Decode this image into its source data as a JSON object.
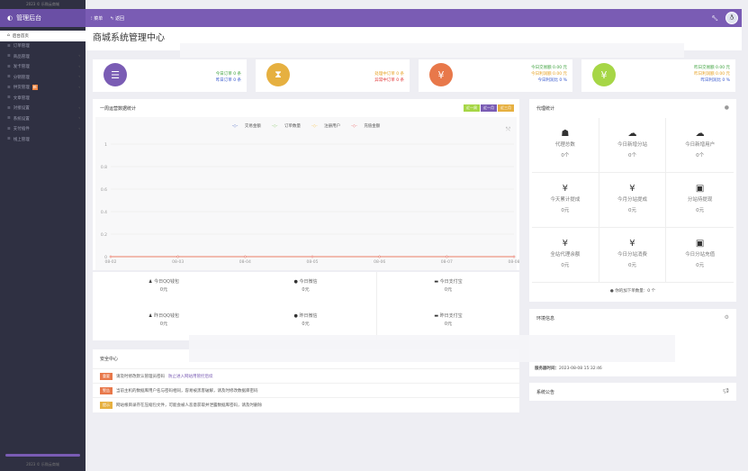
{
  "top_strip": "2023 © 乐购云商城",
  "header": {
    "brand": "管理后台",
    "nav": [
      {
        "icon": "menu-icon",
        "label": "菜单"
      },
      {
        "icon": "back-icon",
        "label": "返回"
      }
    ],
    "tool_icon": "wrench-icon",
    "avatar": "qq-avatar"
  },
  "sidebar": {
    "items": [
      {
        "label": "后台首页",
        "active": true
      },
      {
        "label": "订单管理"
      },
      {
        "label": "商品管理",
        "arrow": true
      },
      {
        "label": "发卡管理",
        "arrow": true
      },
      {
        "label": "分销管理",
        "arrow": true
      },
      {
        "label": "供货管理",
        "badge": "新",
        "arrow": true
      },
      {
        "label": "文章管理"
      },
      {
        "label": "对接设置",
        "arrow": true
      },
      {
        "label": "系统设置",
        "arrow": true
      },
      {
        "label": "支付插件",
        "arrow": true
      },
      {
        "label": "线上管理"
      }
    ],
    "footer": "2023 © 乐购云商城"
  },
  "page_title": "商城系统管理中心",
  "stats": [
    {
      "color": "#7a5cb4",
      "icon": "list-icon",
      "lines": [
        {
          "t": "今日订单 0 条",
          "c": "#3aa03a"
        },
        {
          "t": "昨日订单 0 条",
          "c": "#3355cc"
        }
      ]
    },
    {
      "color": "#e6b040",
      "icon": "hourglass-icon",
      "lines": [
        {
          "t": "处理中订单 0 条",
          "c": "#e6a020"
        },
        {
          "t": "异常中订单 0 条",
          "c": "#e03030"
        }
      ]
    },
    {
      "color": "#e8784a",
      "icon": "yen-icon",
      "lines": [
        {
          "t": "今日交易额 0.00 元",
          "c": "#3aa03a"
        },
        {
          "t": "今日利润额 0.00 元",
          "c": "#e6a020"
        },
        {
          "t": "今日利润比 0 %",
          "c": "#3355cc"
        }
      ]
    },
    {
      "color": "#a6d646",
      "icon": "yen-icon",
      "lines": [
        {
          "t": "昨日交易额 0.00 元",
          "c": "#3aa03a"
        },
        {
          "t": "昨日利润额 0.00 元",
          "c": "#e6a020"
        },
        {
          "t": "昨日利润比 0 %",
          "c": "#3355cc"
        }
      ]
    }
  ],
  "chart_panel": {
    "title": "一周运营数据统计",
    "buttons": [
      {
        "label": "近一周",
        "color": "#a6d646"
      },
      {
        "label": "近一月",
        "color": "#7a5cb4"
      },
      {
        "label": "近三月",
        "color": "#e6b040"
      }
    ]
  },
  "chart_data": {
    "type": "line",
    "x": [
      "08-02",
      "08-03",
      "08-04",
      "08-05",
      "08-06",
      "08-07",
      "08-08"
    ],
    "ylim": [
      0,
      1
    ],
    "yticks": [
      "0",
      "0.2",
      "0.4",
      "0.6",
      "0.8",
      "1"
    ],
    "grid": true,
    "legend_placement": "top",
    "series": [
      {
        "name": "交易金额",
        "color": "#5470c6",
        "values": [
          0,
          0,
          0,
          0,
          0,
          0,
          0
        ]
      },
      {
        "name": "订单数量",
        "color": "#91cc75",
        "values": [
          0,
          0,
          0,
          0,
          0,
          0,
          0
        ]
      },
      {
        "name": "注册用户",
        "color": "#fac858",
        "values": [
          0,
          0,
          0,
          0,
          0,
          0,
          0
        ]
      },
      {
        "name": "充值金额",
        "color": "#ee6666",
        "values": [
          0,
          0,
          0,
          0,
          0,
          0,
          0
        ]
      }
    ]
  },
  "payments": [
    {
      "icon": "qq-icon",
      "label": "今日QQ钱包",
      "value": "0元"
    },
    {
      "icon": "wechat-icon",
      "label": "今日微信",
      "value": "0元"
    },
    {
      "icon": "card-icon",
      "label": "今日支付宝",
      "value": "0元"
    },
    {
      "icon": "qq-icon",
      "label": "昨日QQ钱包",
      "value": "0元"
    },
    {
      "icon": "wechat-icon",
      "label": "昨日微信",
      "value": "0元"
    },
    {
      "icon": "card-icon",
      "label": "昨日支付宝",
      "value": "0元"
    }
  ],
  "security": {
    "title": "安全中心",
    "rows": [
      {
        "tag": "重要",
        "color": "#e8784a",
        "text": "请及时修改默认管理员密码",
        "link": "防止进入网站用管控后续"
      },
      {
        "tag": "警告",
        "color": "#e8784a",
        "text": "当前主机的数据库用户名与密码相同，容易被黑客破解，请及时修改数据库密码"
      },
      {
        "tag": "提示",
        "color": "#e6b040",
        "text": "网站根目录存在压缩包文件，可能会被人恶意获取并泄露数据库密码，请及时删除"
      }
    ]
  },
  "agent": {
    "title": "代理统计",
    "cells": [
      {
        "icon": "sitemap-icon",
        "label": "代理总数",
        "value": "0个"
      },
      {
        "icon": "cloud-icon",
        "label": "今日新增分站",
        "value": "0个"
      },
      {
        "icon": "cloud-icon",
        "label": "今日新增用户",
        "value": "0个"
      },
      {
        "icon": "yen-icon",
        "label": "今天累计提成",
        "value": "0元"
      },
      {
        "icon": "yen-icon",
        "label": "今月分站提成",
        "value": "0元"
      },
      {
        "icon": "money-icon",
        "label": "分站待提现",
        "value": "0元"
      },
      {
        "icon": "yen-icon",
        "label": "全站代理余额",
        "value": "0元"
      },
      {
        "icon": "yen-icon",
        "label": "今日分站消费",
        "value": "0元"
      },
      {
        "icon": "money-icon",
        "label": "今日分站充值",
        "value": "0元"
      }
    ],
    "footer": "你的加下单数量：0 个"
  },
  "env": {
    "title": "环境信息",
    "server_time_label": "服务器时间：",
    "server_time": "2023-08-08 15:32:46"
  },
  "notice": {
    "title": "系统公告"
  }
}
